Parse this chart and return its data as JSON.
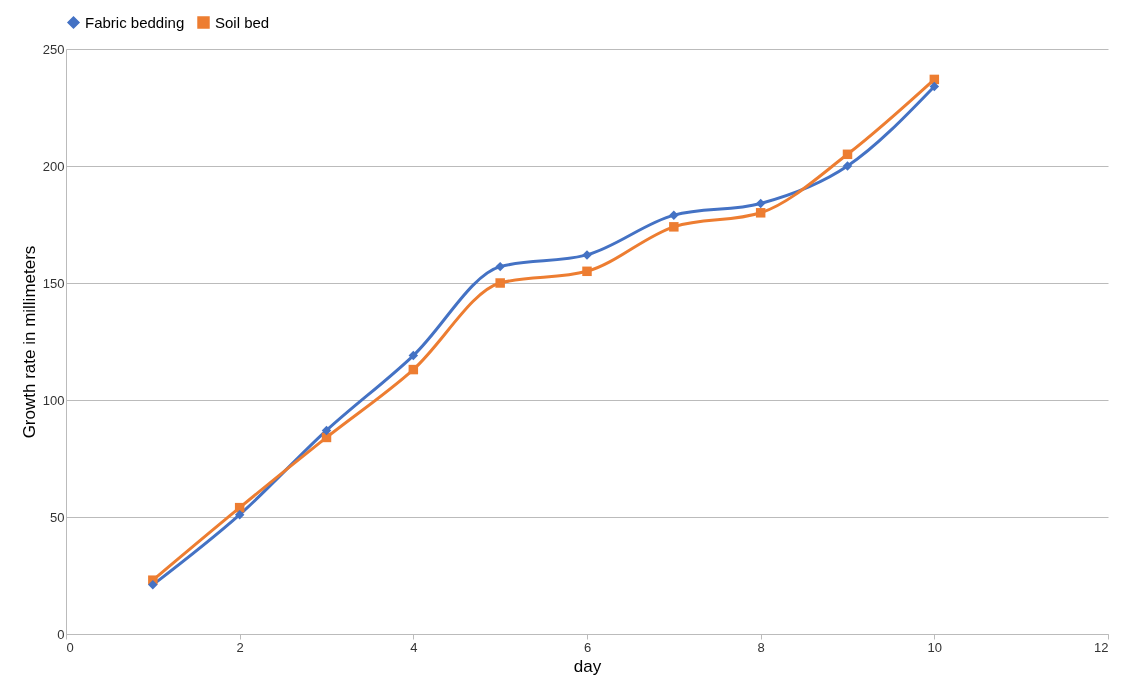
{
  "chart_data": {
    "type": "line",
    "xlabel": "day",
    "ylabel": "Growth rate in millimeters",
    "x": [
      1,
      2,
      3,
      4,
      5,
      6,
      7,
      8,
      9,
      10
    ],
    "series": [
      {
        "name": "Fabric bedding",
        "color": "#4472c4",
        "marker": "diamond",
        "values": [
          21,
          51,
          87,
          119,
          157,
          162,
          179,
          184,
          200,
          234
        ]
      },
      {
        "name": "Soil bed",
        "color": "#ed7d31",
        "marker": "square",
        "values": [
          23,
          54,
          84,
          113,
          150,
          155,
          174,
          180,
          205,
          237
        ]
      }
    ],
    "xlim": [
      0,
      12
    ],
    "xticks": [
      0,
      2,
      4,
      6,
      8,
      10,
      12
    ],
    "ylim": [
      0,
      250
    ],
    "yticks": [
      0,
      50,
      100,
      150,
      200,
      250
    ],
    "grid": "y",
    "legend": "top",
    "line_style": "solid"
  }
}
